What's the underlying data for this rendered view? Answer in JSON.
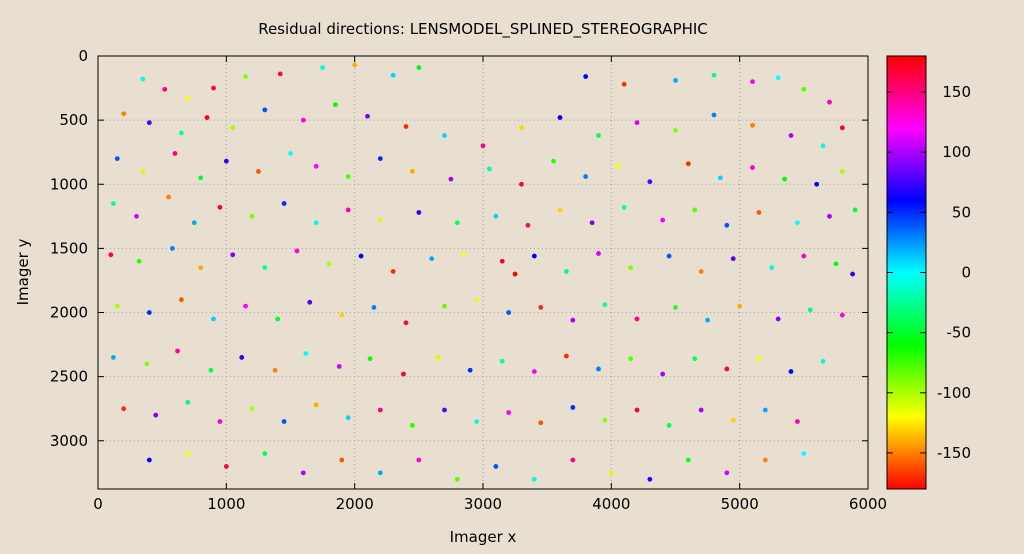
{
  "chart_data": {
    "type": "scatter",
    "title": "Residual directions: LENSMODEL_SPLINED_STEREOGRAPHIC",
    "xlabel": "Imager x",
    "ylabel": "Imager y",
    "xlim": [
      0,
      6000
    ],
    "ylim": [
      3376,
      0
    ],
    "y_reversed": true,
    "grid": true,
    "x_ticks": [
      "0",
      "1000",
      "2000",
      "3000",
      "4000",
      "5000",
      "6000"
    ],
    "y_ticks": [
      "0",
      "500",
      "1000",
      "1500",
      "2000",
      "2500",
      "3000"
    ],
    "colorbar": {
      "range": [
        -180,
        180
      ],
      "palette": "hsv hue = angle + 180",
      "ticks": [
        "-150",
        "-100",
        "-50",
        "0",
        "50",
        "100",
        "150"
      ]
    },
    "points": [
      [
        350,
        180,
        -5
      ],
      [
        520,
        260,
        150
      ],
      [
        700,
        330,
        -120
      ],
      [
        900,
        250,
        170
      ],
      [
        1150,
        160,
        -90
      ],
      [
        1420,
        140,
        160
      ],
      [
        1750,
        90,
        -10
      ],
      [
        2000,
        70,
        -140
      ],
      [
        2300,
        150,
        10
      ],
      [
        2500,
        90,
        -60
      ],
      [
        3800,
        160,
        60
      ],
      [
        4100,
        220,
        -170
      ],
      [
        4500,
        190,
        20
      ],
      [
        4800,
        150,
        -30
      ],
      [
        5100,
        200,
        120
      ],
      [
        5300,
        170,
        0
      ],
      [
        5500,
        260,
        -80
      ],
      [
        5700,
        360,
        140
      ],
      [
        200,
        450,
        -150
      ],
      [
        400,
        520,
        80
      ],
      [
        650,
        600,
        -20
      ],
      [
        850,
        480,
        175
      ],
      [
        1050,
        560,
        -100
      ],
      [
        1300,
        420,
        40
      ],
      [
        1600,
        500,
        130
      ],
      [
        1850,
        380,
        -60
      ],
      [
        2100,
        470,
        90
      ],
      [
        2400,
        550,
        -170
      ],
      [
        2700,
        620,
        10
      ],
      [
        3000,
        700,
        150
      ],
      [
        3300,
        560,
        -130
      ],
      [
        3600,
        480,
        60
      ],
      [
        3900,
        620,
        -40
      ],
      [
        4200,
        520,
        110
      ],
      [
        4500,
        580,
        -90
      ],
      [
        4800,
        460,
        30
      ],
      [
        5100,
        540,
        -150
      ],
      [
        5400,
        620,
        100
      ],
      [
        5650,
        700,
        -10
      ],
      [
        5800,
        560,
        170
      ],
      [
        150,
        800,
        40
      ],
      [
        350,
        900,
        -110
      ],
      [
        600,
        760,
        150
      ],
      [
        800,
        950,
        -50
      ],
      [
        1000,
        820,
        70
      ],
      [
        1250,
        900,
        -160
      ],
      [
        1500,
        760,
        0
      ],
      [
        1700,
        860,
        120
      ],
      [
        1950,
        940,
        -80
      ],
      [
        2200,
        800,
        50
      ],
      [
        2450,
        900,
        -140
      ],
      [
        2750,
        960,
        100
      ],
      [
        3050,
        880,
        -20
      ],
      [
        3300,
        1000,
        160
      ],
      [
        3550,
        820,
        -70
      ],
      [
        3800,
        940,
        30
      ],
      [
        4050,
        860,
        -120
      ],
      [
        4300,
        980,
        80
      ],
      [
        4600,
        840,
        -170
      ],
      [
        4850,
        950,
        10
      ],
      [
        5100,
        870,
        130
      ],
      [
        5350,
        960,
        -60
      ],
      [
        5600,
        1000,
        60
      ],
      [
        5800,
        900,
        -100
      ],
      [
        120,
        1150,
        -30
      ],
      [
        300,
        1250,
        110
      ],
      [
        550,
        1100,
        -150
      ],
      [
        750,
        1300,
        20
      ],
      [
        950,
        1180,
        170
      ],
      [
        1200,
        1250,
        -90
      ],
      [
        1450,
        1150,
        50
      ],
      [
        1700,
        1300,
        -10
      ],
      [
        1950,
        1200,
        140
      ],
      [
        2200,
        1280,
        -110
      ],
      [
        2500,
        1220,
        70
      ],
      [
        2800,
        1300,
        -40
      ],
      [
        3100,
        1250,
        10
      ],
      [
        3350,
        1320,
        150
      ],
      [
        3600,
        1200,
        -130
      ],
      [
        3850,
        1300,
        90
      ],
      [
        4100,
        1180,
        -20
      ],
      [
        4400,
        1280,
        120
      ],
      [
        4650,
        1200,
        -80
      ],
      [
        4900,
        1320,
        40
      ],
      [
        5150,
        1220,
        -160
      ],
      [
        5450,
        1300,
        0
      ],
      [
        5700,
        1250,
        100
      ],
      [
        5900,
        1200,
        -50
      ],
      [
        100,
        1550,
        160
      ],
      [
        320,
        1600,
        -70
      ],
      [
        580,
        1500,
        30
      ],
      [
        800,
        1650,
        -140
      ],
      [
        1050,
        1550,
        90
      ],
      [
        1300,
        1650,
        -20
      ],
      [
        1550,
        1520,
        130
      ],
      [
        1800,
        1620,
        -100
      ],
      [
        2050,
        1560,
        60
      ],
      [
        2300,
        1680,
        -170
      ],
      [
        2600,
        1580,
        20
      ],
      [
        2850,
        1550,
        -120
      ],
      [
        3150,
        1600,
        170
      ],
      [
        3250,
        1700,
        180
      ],
      [
        3400,
        1560,
        60
      ],
      [
        3650,
        1680,
        -30
      ],
      [
        3900,
        1540,
        110
      ],
      [
        4150,
        1650,
        -90
      ],
      [
        4450,
        1560,
        40
      ],
      [
        4700,
        1680,
        -150
      ],
      [
        4950,
        1580,
        80
      ],
      [
        5250,
        1650,
        -10
      ],
      [
        5500,
        1560,
        140
      ],
      [
        5750,
        1620,
        -60
      ],
      [
        5880,
        1700,
        70
      ],
      [
        150,
        1950,
        -100
      ],
      [
        400,
        2000,
        50
      ],
      [
        650,
        1900,
        -160
      ],
      [
        900,
        2050,
        10
      ],
      [
        1150,
        1950,
        120
      ],
      [
        1400,
        2050,
        -50
      ],
      [
        1650,
        1920,
        80
      ],
      [
        1900,
        2020,
        -130
      ],
      [
        2150,
        1960,
        30
      ],
      [
        2400,
        2080,
        160
      ],
      [
        2700,
        1950,
        -80
      ],
      [
        2950,
        1900,
        -115
      ],
      [
        3200,
        2000,
        40
      ],
      [
        3450,
        1960,
        -170
      ],
      [
        3700,
        2060,
        100
      ],
      [
        3950,
        1940,
        -20
      ],
      [
        4200,
        2050,
        150
      ],
      [
        4500,
        1960,
        -70
      ],
      [
        4750,
        2060,
        20
      ],
      [
        5000,
        1950,
        -140
      ],
      [
        5300,
        2050,
        90
      ],
      [
        5550,
        1980,
        -30
      ],
      [
        5800,
        2020,
        130
      ],
      [
        120,
        2350,
        20
      ],
      [
        380,
        2400,
        -90
      ],
      [
        620,
        2300,
        140
      ],
      [
        880,
        2450,
        -40
      ],
      [
        1120,
        2350,
        70
      ],
      [
        1380,
        2450,
        -150
      ],
      [
        1620,
        2320,
        0
      ],
      [
        1880,
        2420,
        110
      ],
      [
        2120,
        2360,
        -60
      ],
      [
        2380,
        2480,
        170
      ],
      [
        2650,
        2350,
        -110
      ],
      [
        2900,
        2450,
        50
      ],
      [
        3150,
        2380,
        -20
      ],
      [
        3400,
        2460,
        120
      ],
      [
        3650,
        2340,
        -170
      ],
      [
        3900,
        2440,
        30
      ],
      [
        4150,
        2360,
        -80
      ],
      [
        4400,
        2480,
        100
      ],
      [
        4650,
        2360,
        -40
      ],
      [
        4900,
        2440,
        160
      ],
      [
        5150,
        2360,
        -120
      ],
      [
        5400,
        2460,
        60
      ],
      [
        5650,
        2380,
        -10
      ],
      [
        200,
        2750,
        -170
      ],
      [
        450,
        2800,
        90
      ],
      [
        700,
        2700,
        -30
      ],
      [
        950,
        2850,
        130
      ],
      [
        1200,
        2750,
        -100
      ],
      [
        1450,
        2850,
        40
      ],
      [
        1700,
        2720,
        -140
      ],
      [
        1950,
        2820,
        10
      ],
      [
        2200,
        2760,
        150
      ],
      [
        2450,
        2880,
        -70
      ],
      [
        2700,
        2760,
        80
      ],
      [
        2950,
        2850,
        -10
      ],
      [
        3200,
        2780,
        120
      ],
      [
        3450,
        2860,
        -160
      ],
      [
        3700,
        2740,
        50
      ],
      [
        3950,
        2840,
        -90
      ],
      [
        4200,
        2760,
        170
      ],
      [
        4450,
        2880,
        -40
      ],
      [
        4700,
        2760,
        100
      ],
      [
        4950,
        2840,
        -130
      ],
      [
        5200,
        2760,
        20
      ],
      [
        5450,
        2850,
        140
      ],
      [
        400,
        3150,
        60
      ],
      [
        700,
        3100,
        -120
      ],
      [
        1000,
        3200,
        160
      ],
      [
        1300,
        3100,
        -40
      ],
      [
        1600,
        3250,
        100
      ],
      [
        1900,
        3150,
        -160
      ],
      [
        2200,
        3250,
        20
      ],
      [
        2500,
        3150,
        130
      ],
      [
        2800,
        3300,
        -80
      ],
      [
        3100,
        3200,
        40
      ],
      [
        3400,
        3300,
        -10
      ],
      [
        3700,
        3150,
        150
      ],
      [
        4000,
        3250,
        -110
      ],
      [
        4300,
        3300,
        70
      ],
      [
        4600,
        3150,
        -50
      ],
      [
        4900,
        3250,
        110
      ],
      [
        5200,
        3150,
        -150
      ],
      [
        5500,
        3100,
        0
      ]
    ]
  }
}
